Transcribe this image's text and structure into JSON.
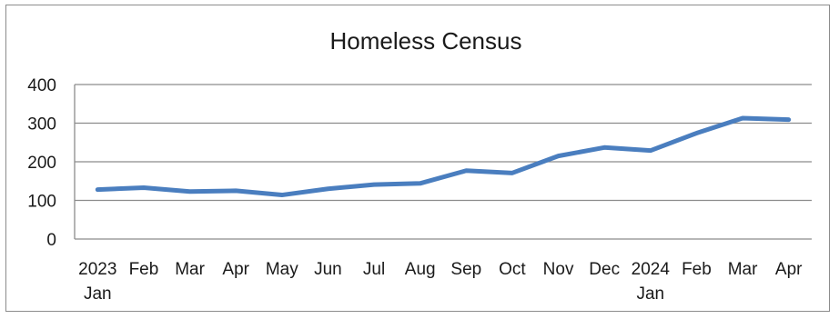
{
  "chart_data": {
    "type": "line",
    "title": "Homeless Census",
    "xlabel": "",
    "ylabel": "",
    "categories": [
      {
        "line1": "2023",
        "line2": "Jan"
      },
      {
        "line1": "Feb",
        "line2": ""
      },
      {
        "line1": "Mar",
        "line2": ""
      },
      {
        "line1": "Apr",
        "line2": ""
      },
      {
        "line1": "May",
        "line2": ""
      },
      {
        "line1": "Jun",
        "line2": ""
      },
      {
        "line1": "Jul",
        "line2": ""
      },
      {
        "line1": "Aug",
        "line2": ""
      },
      {
        "line1": "Sep",
        "line2": ""
      },
      {
        "line1": "Oct",
        "line2": ""
      },
      {
        "line1": "Nov",
        "line2": ""
      },
      {
        "line1": "Dec",
        "line2": ""
      },
      {
        "line1": "2024",
        "line2": "Jan"
      },
      {
        "line1": "Feb",
        "line2": ""
      },
      {
        "line1": "Mar",
        "line2": ""
      },
      {
        "line1": "Apr",
        "line2": ""
      }
    ],
    "series": [
      {
        "values": [
          128,
          133,
          123,
          125,
          114,
          130,
          141,
          144,
          177,
          171,
          215,
          237,
          229,
          274,
          313,
          309
        ]
      }
    ],
    "ylim": [
      0,
      400
    ],
    "yticks": [
      0,
      100,
      200,
      300,
      400
    ],
    "grid": true,
    "legend": "none",
    "colors": {
      "line": "#4a7ebf",
      "grid": "#8c8c8c",
      "axis": "#8c8c8c"
    }
  }
}
